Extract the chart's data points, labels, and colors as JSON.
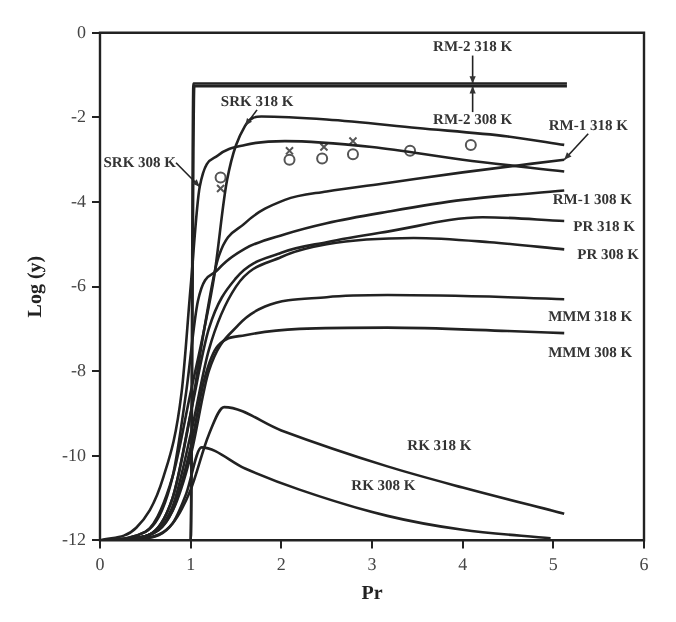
{
  "chart_data": {
    "type": "line",
    "xlabel": "Pr",
    "ylabel": "Log (y)",
    "xlim": [
      0,
      6
    ],
    "xticks": [
      0,
      1,
      2,
      3,
      4,
      5,
      6
    ],
    "ylim": [
      -12,
      0
    ],
    "yticks": [
      -12,
      -10,
      -8,
      -6,
      -4,
      -2,
      0
    ],
    "grid": false,
    "legend": false,
    "marker": "none",
    "line_style": "solid",
    "series": [
      {
        "color": "#222222",
        "x": [
          0,
          1.0,
          1.03,
          5.15
        ],
        "values": [
          -12,
          -12,
          -1.2,
          -1.2
        ]
      },
      {
        "color": "#222222",
        "x": [
          0,
          1.0,
          1.04,
          5.15
        ],
        "values": [
          -12,
          -12,
          -1.26,
          -1.26
        ]
      },
      {
        "color": "#222222",
        "x": [
          0,
          0.5,
          0.8,
          1.0,
          1.15,
          1.26,
          1.4,
          1.6,
          1.78,
          2.5,
          3.5,
          4.5,
          5.12
        ],
        "values": [
          -12,
          -11.8,
          -10.5,
          -8.5,
          -7,
          -5.75,
          -3.5,
          -2.2,
          -1.98,
          -2.05,
          -2.25,
          -2.45,
          -2.65
        ]
      },
      {
        "color": "#222222",
        "x": [
          0,
          0.4,
          0.7,
          0.9,
          1.0,
          1.1,
          1.3,
          1.6,
          2.04,
          3,
          4,
          5.12
        ],
        "values": [
          -12,
          -11.7,
          -10.5,
          -8.5,
          -6,
          -3.64,
          -2.9,
          -2.65,
          -2.56,
          -2.7,
          -3.0,
          -3.28
        ]
      },
      {
        "color": "#222222",
        "x": [
          0,
          0.5,
          0.8,
          1.0,
          1.15,
          1.3,
          1.6,
          2.04,
          2.5,
          3.17,
          4,
          5.12
        ],
        "values": [
          -12,
          -11.9,
          -11,
          -9,
          -7,
          -5.35,
          -4.5,
          -3.95,
          -3.75,
          -3.55,
          -3.3,
          -3.0
        ]
      },
      {
        "color": "#222222",
        "x": [
          0,
          0.5,
          0.8,
          0.95,
          1.08,
          1.3,
          1.6,
          2.04,
          2.5,
          3.17,
          4,
          5.12
        ],
        "values": [
          -12,
          -11.8,
          -10.5,
          -8.5,
          -6.34,
          -5.6,
          -5.1,
          -4.76,
          -4.5,
          -4.23,
          -3.95,
          -3.73
        ]
      },
      {
        "color": "#222222",
        "x": [
          0,
          0.5,
          0.8,
          1.0,
          1.2,
          1.5,
          2,
          2.5,
          3.17,
          4.22,
          5.12
        ],
        "values": [
          -12,
          -11.9,
          -11,
          -9,
          -7,
          -5.8,
          -5.2,
          -4.95,
          -4.7,
          -4.36,
          -4.45
        ]
      },
      {
        "color": "#222222",
        "x": [
          0,
          0.5,
          0.8,
          1.0,
          1.2,
          1.5,
          2,
          2.5,
          3.46,
          4.3,
          5.12
        ],
        "values": [
          -12,
          -11.9,
          -11.2,
          -9.5,
          -7.5,
          -6,
          -5.3,
          -5.0,
          -4.85,
          -4.95,
          -5.12
        ]
      },
      {
        "color": "#222222",
        "x": [
          0,
          0.5,
          0.8,
          1.0,
          1.2,
          1.53,
          1.82,
          2.5,
          3.17,
          4.5,
          5.12
        ],
        "values": [
          -12,
          -11.9,
          -11.3,
          -10,
          -8,
          -6.9,
          -6.47,
          -6.25,
          -6.2,
          -6.25,
          -6.3
        ]
      },
      {
        "color": "#222222",
        "x": [
          0,
          0.5,
          0.8,
          1.0,
          1.15,
          1.3,
          1.6,
          2.2,
          3.17,
          4.5,
          5.12
        ],
        "values": [
          -12,
          -11.9,
          -11.3,
          -9.8,
          -8.2,
          -7.4,
          -7.15,
          -7.0,
          -6.97,
          -7.05,
          -7.1
        ]
      },
      {
        "color": "#222222",
        "x": [
          0,
          0.5,
          0.8,
          1.0,
          1.2,
          1.37,
          2,
          3.17,
          4,
          5.12
        ],
        "values": [
          -12,
          -11.95,
          -11.6,
          -10.8,
          -9.5,
          -8.85,
          -9.4,
          -10.25,
          -10.75,
          -11.37
        ]
      },
      {
        "color": "#222222",
        "x": [
          0,
          0.5,
          0.8,
          0.95,
          1.12,
          1.6,
          2.2,
          3.17,
          4,
          4.97
        ],
        "values": [
          -12,
          -11.95,
          -11.6,
          -10.9,
          -9.8,
          -10.3,
          -10.8,
          -11.42,
          -11.75,
          -11.95
        ]
      },
      {
        "type": "scatter",
        "marker": "circle",
        "color": "#555555",
        "x": [
          1.33,
          2.09,
          2.45,
          2.79,
          3.42,
          4.09
        ],
        "values": [
          -3.42,
          -3.0,
          -2.97,
          -2.87,
          -2.79,
          -2.65
        ]
      },
      {
        "type": "scatter",
        "marker": "cross",
        "color": "#555555",
        "x": [
          1.33,
          2.09,
          2.47,
          2.79
        ],
        "values": [
          -3.68,
          -2.79,
          -2.7,
          -2.56
        ]
      }
    ],
    "annotations": [
      {
        "text": "RM-2 318 K",
        "x": 4.11,
        "y": -1.2
      },
      {
        "text": "RM-2 308 K",
        "x": 4.11,
        "y": -1.26
      },
      {
        "text": "RM-1 318 K",
        "x": 5.12,
        "y": -3.0
      },
      {
        "text": "RM-1 308 K",
        "x": 5.12,
        "y": -3.73
      },
      {
        "text": "PR 318 K",
        "x": 5.12,
        "y": -4.45
      },
      {
        "text": "PR 308 K",
        "x": 5.12,
        "y": -5.12
      },
      {
        "text": "MMM 318 K",
        "x": 5.12,
        "y": -6.3
      },
      {
        "text": "MMM 308 K",
        "x": 5.12,
        "y": -7.1
      },
      {
        "text": "RK 318 K",
        "x": 3.17,
        "y": -10.25
      },
      {
        "text": "RK 308 K",
        "x": 3.17,
        "y": -11.42
      },
      {
        "text": "SRK 318 K",
        "x": 1.6,
        "y": -2.2
      },
      {
        "text": "SRK 308 K",
        "x": 1.1,
        "y": -3.64
      }
    ]
  }
}
